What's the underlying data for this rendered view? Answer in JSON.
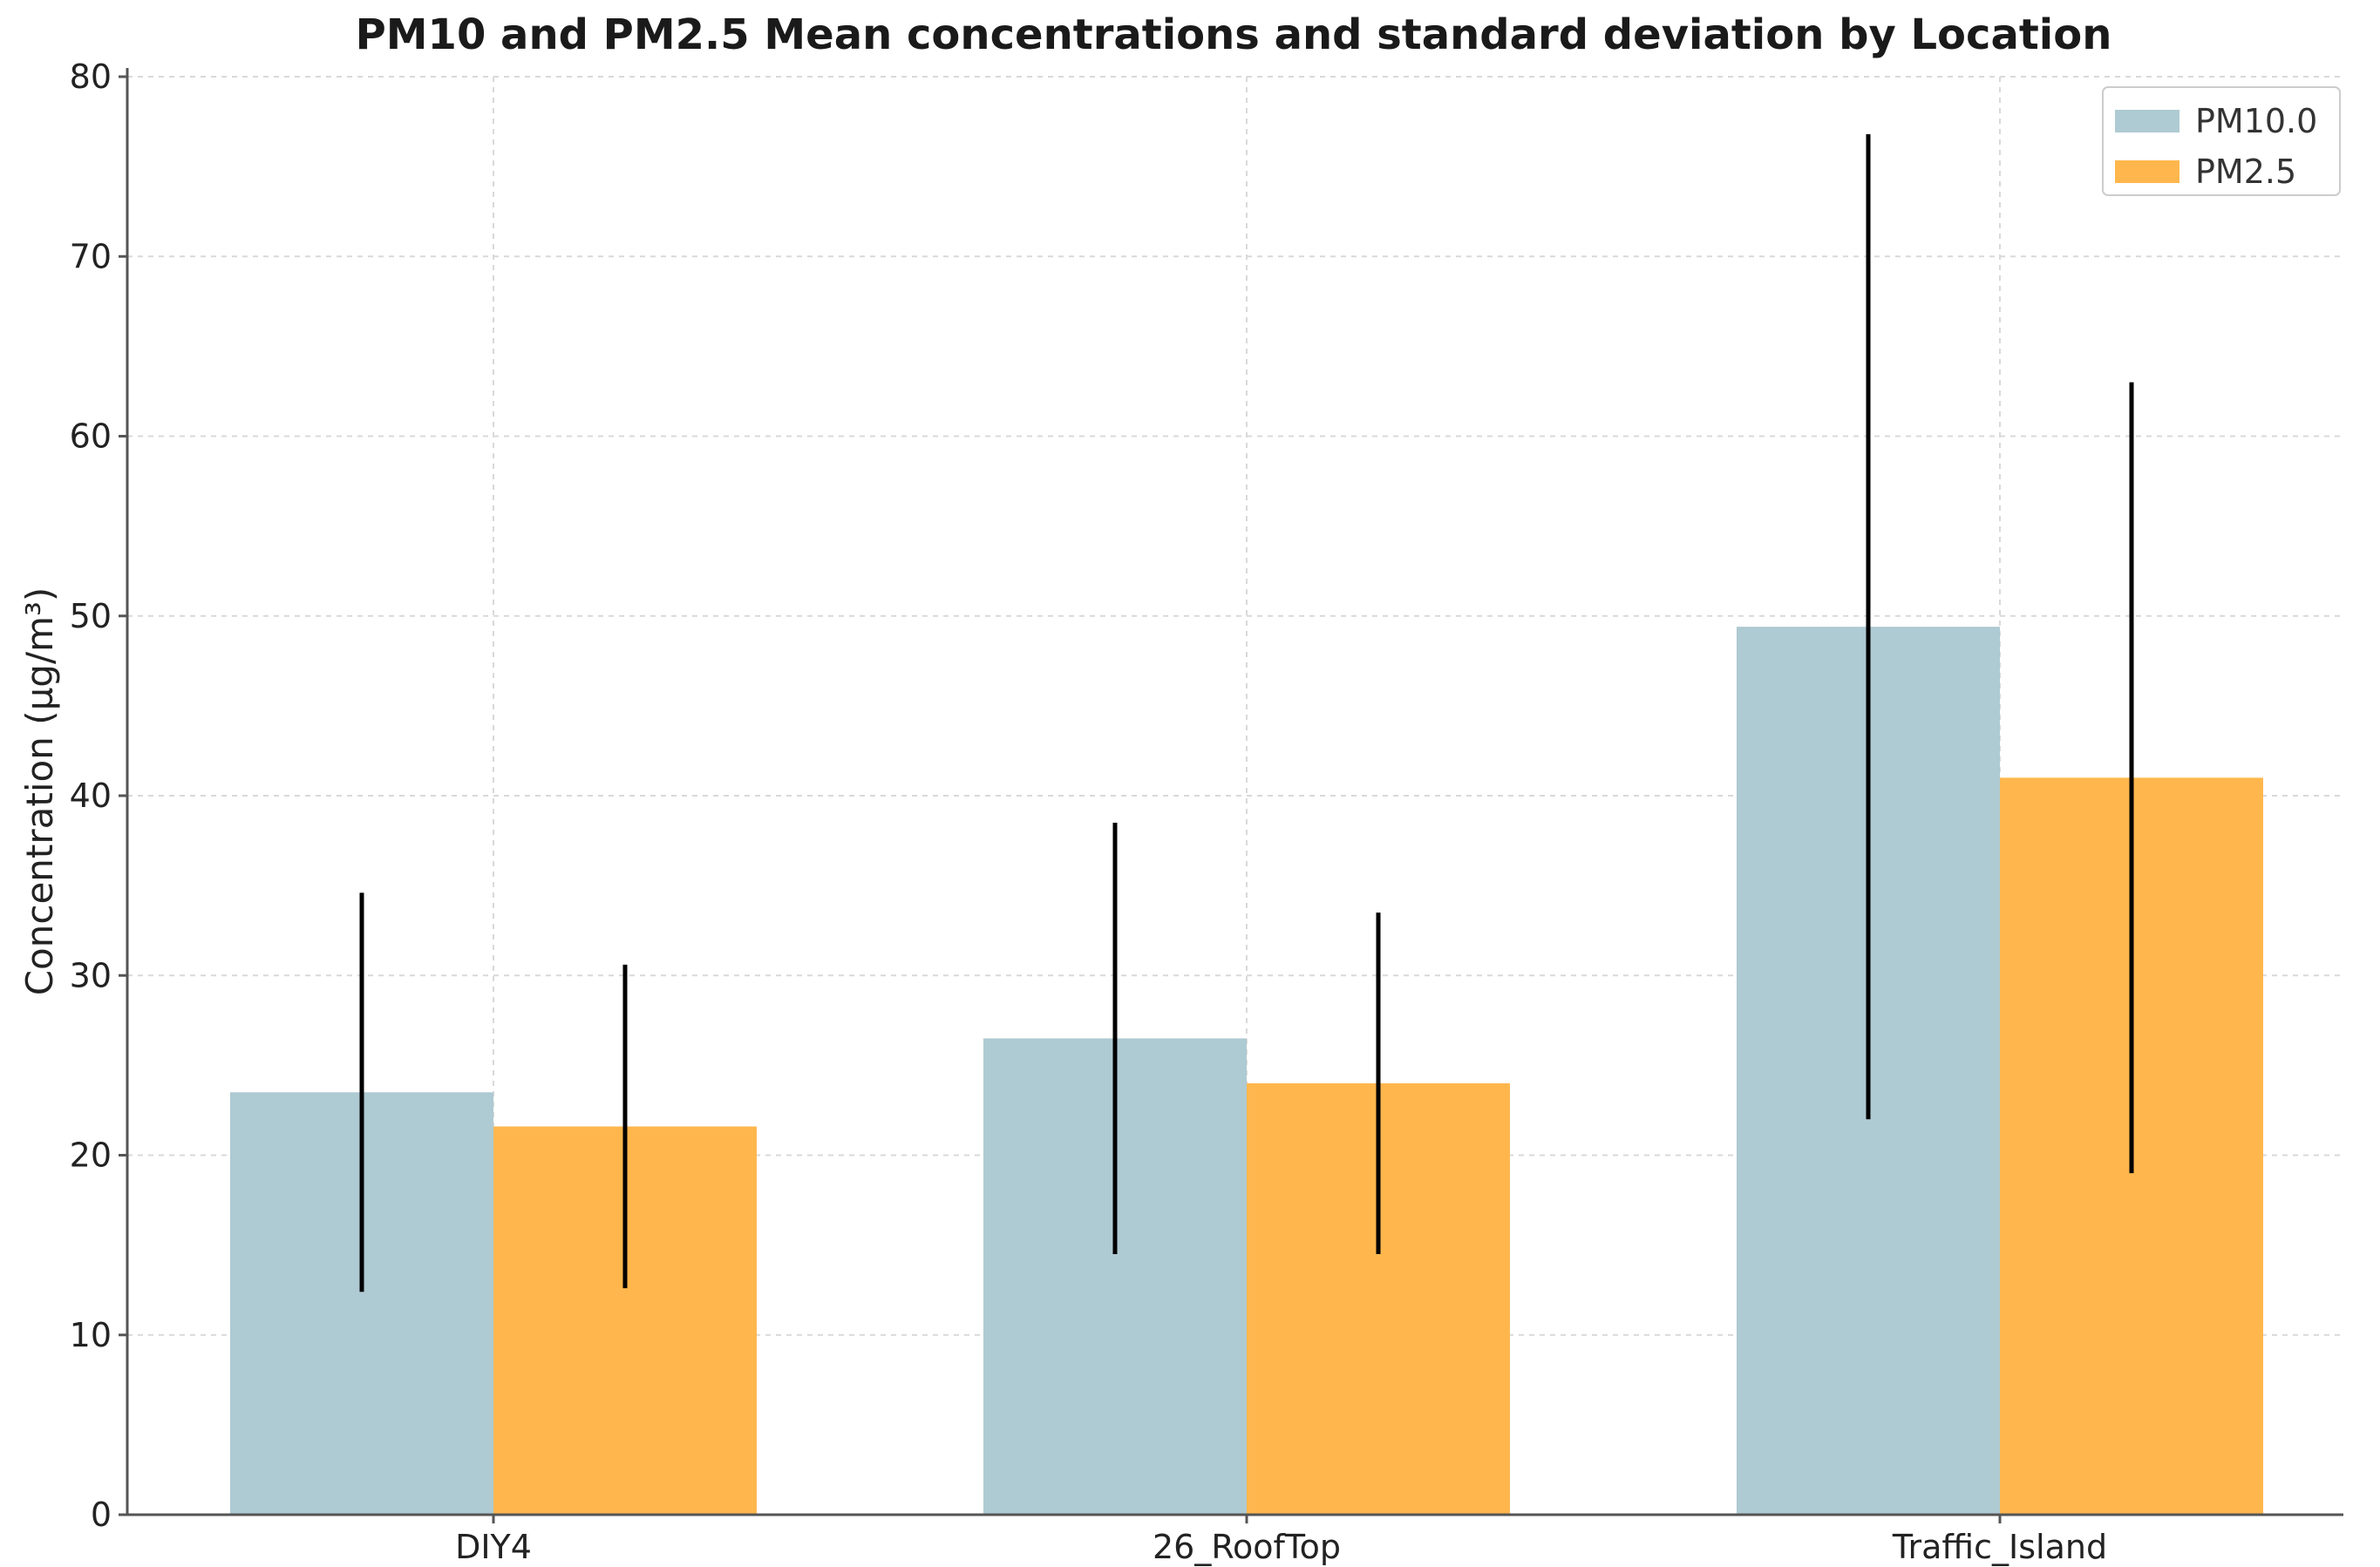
{
  "chart_data": {
    "type": "bar",
    "title": "PM10 and PM2.5 Mean concentrations and standard deviation by Location",
    "xlabel": "",
    "ylabel": "Concentration (µg/m³)",
    "categories": [
      "DIY4",
      "26_RoofTop",
      "Traffic_Island"
    ],
    "ylim": [
      0,
      80
    ],
    "yticks": [
      0,
      10,
      20,
      30,
      40,
      50,
      60,
      70,
      80
    ],
    "grid": true,
    "legend_position": "top-right",
    "series": [
      {
        "name": "PM10.0",
        "color": "#aecad2",
        "values": [
          23.5,
          26.5,
          49.4
        ],
        "std": [
          11.1,
          12.0,
          27.4
        ]
      },
      {
        "name": "PM2.5",
        "color": "#ffb74d",
        "values": [
          21.6,
          24.0,
          41.0
        ],
        "std": [
          9.0,
          9.5,
          22.0
        ]
      }
    ]
  }
}
